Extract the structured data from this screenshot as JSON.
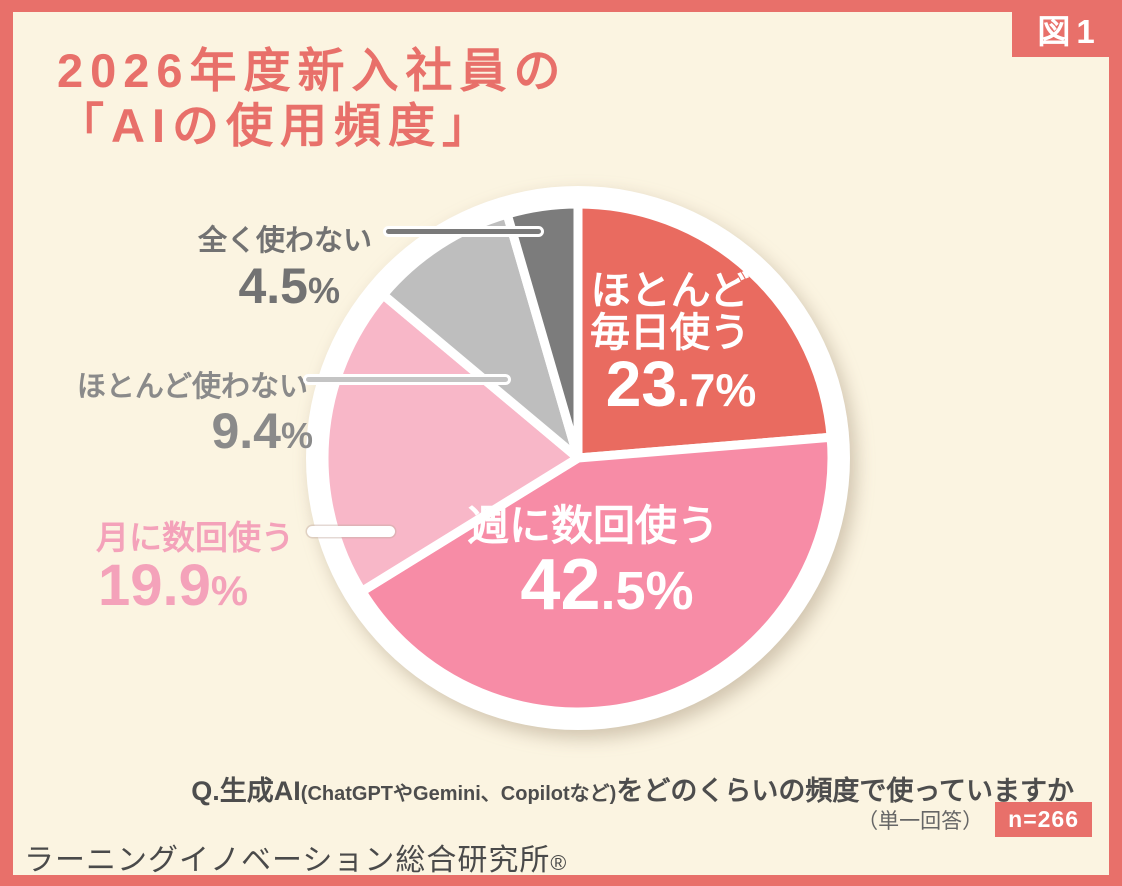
{
  "figure_label": "図1",
  "title": {
    "line1": "2026年度新入社員の",
    "line2": "「AIの使用頻度」"
  },
  "colors": {
    "accent": "#E8706A",
    "background": "#FBF4E1",
    "label_gray_dark": "#727272",
    "label_gray_light": "#8A8A8A",
    "label_pink": "#F4A2BA"
  },
  "chart_data": {
    "type": "pie",
    "title": "2026年度新入社員の「AIの使用頻度」",
    "unit": "%",
    "start_angle_deg": 0,
    "direction": "clockwise",
    "sample_size": 266,
    "segments": [
      {
        "label": "ほとんど毎日使う",
        "value": 23.7,
        "color": "#E96B60",
        "label_position": "inside"
      },
      {
        "label": "週に数回使う",
        "value": 42.5,
        "color": "#F78CA6",
        "label_position": "inside"
      },
      {
        "label": "月に数回使う",
        "value": 19.9,
        "color": "#F8B7C8",
        "label_position": "outside-left"
      },
      {
        "label": "ほとんど使わない",
        "value": 9.4,
        "color": "#BEBEBE",
        "label_position": "outside-left"
      },
      {
        "label": "全く使わない",
        "value": 4.5,
        "color": "#7C7C7C",
        "label_position": "outside-left"
      }
    ]
  },
  "pie_labels": {
    "seg1_line1": "ほとんど",
    "seg1_line2": "毎日使う",
    "seg1_big": "23",
    "seg1_small": ".7%",
    "seg2_name": "週に数回使う",
    "seg2_big": "42",
    "seg2_small": ".5%",
    "seg3_name": "月に数回使う",
    "seg3_big": "19.9",
    "seg3_small": "%",
    "seg4_name": "ほとんど使わない",
    "seg4_big": "9.4",
    "seg4_small": "%",
    "seg5_name": "全く使わない",
    "seg5_big": "4.5",
    "seg5_small": "%"
  },
  "question": {
    "q_prefix": "Q.生成AI",
    "q_paren": "(ChatGPTやGemini、Copilotなど)",
    "q_suffix": "をどのくらいの頻度で使っていますか",
    "answer_type": "（単一回答）",
    "sample_label": "n=266"
  },
  "footer": {
    "org": "ラーニングイノベーション総合研究所",
    "reg": "®"
  }
}
